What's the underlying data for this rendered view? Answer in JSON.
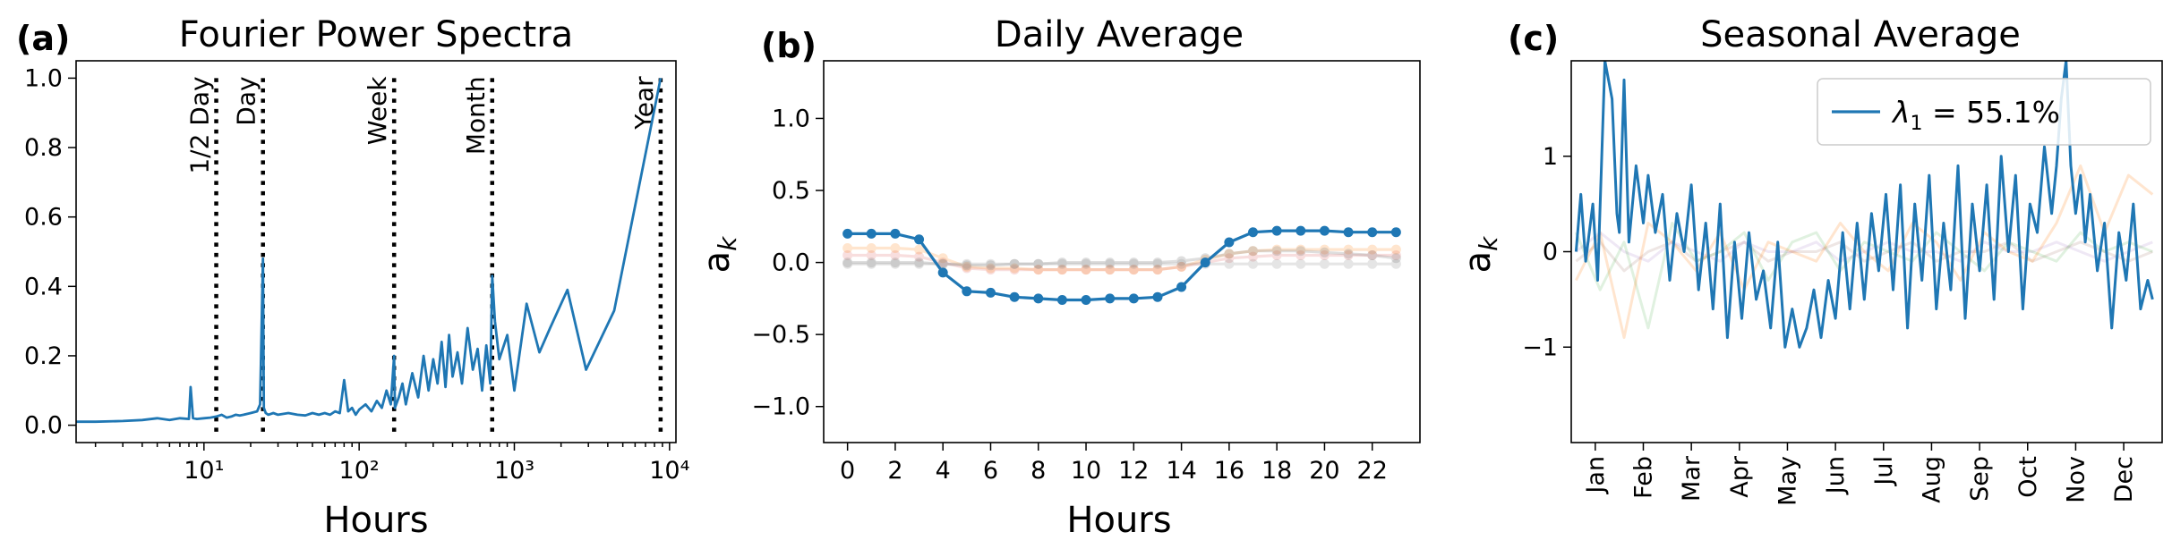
{
  "chart_data": [
    {
      "type": "line",
      "panel": "(a)",
      "title": "Fourier Power Spectra",
      "xlabel": "Hours",
      "ylabel": "",
      "xscale": "log",
      "xlim": [
        1.5,
        11000
      ],
      "ylim": [
        -0.05,
        1.05
      ],
      "yticks": [
        0.0,
        0.2,
        0.4,
        0.6,
        0.8,
        1.0
      ],
      "ytick_labels": [
        "0.0",
        "0.2",
        "0.4",
        "0.6",
        "0.8",
        "1.0"
      ],
      "xticks": [
        10,
        100,
        1000,
        10000
      ],
      "xtick_labels": [
        "10¹",
        "10²",
        "10³",
        "10⁴"
      ],
      "vertical_lines": [
        {
          "x": 12,
          "label": "1/2 Day"
        },
        {
          "x": 24,
          "label": "Day"
        },
        {
          "x": 168,
          "label": "Week"
        },
        {
          "x": 720,
          "label": "Month"
        },
        {
          "x": 8760,
          "label": "Year"
        }
      ],
      "series": [
        {
          "color": "#1f77b4",
          "x": [
            1.5,
            2,
            3,
            4,
            5,
            6,
            7,
            8,
            8.2,
            8.5,
            9,
            10,
            11,
            12,
            13,
            14,
            15,
            16,
            17,
            18,
            20,
            22,
            23,
            24,
            24.3,
            25,
            26,
            28,
            30,
            35,
            40,
            45,
            50,
            55,
            60,
            65,
            70,
            75,
            80,
            85,
            90,
            95,
            100,
            110,
            120,
            130,
            140,
            150,
            160,
            168,
            170,
            180,
            190,
            200,
            220,
            240,
            260,
            280,
            300,
            320,
            340,
            360,
            380,
            400,
            430,
            460,
            500,
            540,
            580,
            620,
            660,
            700,
            720,
            750,
            800,
            900,
            1000,
            1200,
            1450,
            1700,
            2200,
            2900,
            4400,
            8760
          ],
          "y": [
            0.01,
            0.01,
            0.012,
            0.015,
            0.02,
            0.015,
            0.02,
            0.018,
            0.11,
            0.02,
            0.018,
            0.02,
            0.022,
            0.025,
            0.03,
            0.022,
            0.025,
            0.03,
            0.028,
            0.03,
            0.035,
            0.04,
            0.06,
            0.48,
            0.05,
            0.035,
            0.03,
            0.035,
            0.03,
            0.035,
            0.03,
            0.028,
            0.035,
            0.03,
            0.035,
            0.03,
            0.04,
            0.035,
            0.13,
            0.04,
            0.05,
            0.03,
            0.045,
            0.06,
            0.04,
            0.07,
            0.05,
            0.1,
            0.06,
            0.2,
            0.05,
            0.08,
            0.12,
            0.06,
            0.15,
            0.08,
            0.2,
            0.1,
            0.19,
            0.12,
            0.24,
            0.11,
            0.26,
            0.14,
            0.21,
            0.12,
            0.28,
            0.16,
            0.22,
            0.1,
            0.23,
            0.12,
            0.43,
            0.3,
            0.19,
            0.26,
            0.1,
            0.35,
            0.21,
            0.28,
            0.39,
            0.16,
            0.33,
            1.0
          ]
        }
      ]
    },
    {
      "type": "line",
      "panel": "(b)",
      "title": "Daily Average",
      "xlabel": "Hours",
      "ylabel": "a_k",
      "xlim": [
        -1,
        24
      ],
      "ylim": [
        -1.25,
        1.4
      ],
      "yticks": [
        -1.0,
        -0.5,
        0.0,
        0.5,
        1.0
      ],
      "ytick_labels": [
        "−1.0",
        "−0.5",
        "0.0",
        "0.5",
        "1.0"
      ],
      "xticks": [
        0,
        2,
        4,
        6,
        8,
        10,
        12,
        14,
        16,
        18,
        20,
        22
      ],
      "xtick_labels": [
        "0",
        "2",
        "4",
        "6",
        "8",
        "10",
        "12",
        "14",
        "16",
        "18",
        "20",
        "22"
      ],
      "x": [
        0,
        1,
        2,
        3,
        4,
        5,
        6,
        7,
        8,
        9,
        10,
        11,
        12,
        13,
        14,
        15,
        16,
        17,
        18,
        19,
        20,
        21,
        22,
        23
      ],
      "series": [
        {
          "color": "#1f77b4",
          "alpha": 1.0,
          "values": [
            0.2,
            0.2,
            0.2,
            0.16,
            -0.07,
            -0.2,
            -0.21,
            -0.24,
            -0.25,
            -0.26,
            -0.26,
            -0.25,
            -0.25,
            -0.24,
            -0.17,
            0.0,
            0.14,
            0.21,
            0.22,
            0.22,
            0.22,
            0.21,
            0.21,
            0.21
          ]
        },
        {
          "color": "#ff7f0e",
          "alpha": 0.2,
          "values": [
            0.1,
            0.1,
            0.1,
            0.09,
            0.03,
            -0.03,
            -0.04,
            -0.04,
            -0.05,
            -0.05,
            -0.05,
            -0.05,
            -0.05,
            -0.05,
            -0.03,
            0.02,
            0.06,
            0.08,
            0.09,
            0.09,
            0.09,
            0.09,
            0.09,
            0.09
          ]
        },
        {
          "color": "#d62728",
          "alpha": 0.15,
          "values": [
            0.05,
            0.05,
            0.05,
            0.04,
            0.0,
            -0.04,
            -0.05,
            -0.05,
            -0.05,
            -0.05,
            -0.05,
            -0.05,
            -0.05,
            -0.05,
            -0.03,
            0.0,
            0.03,
            0.04,
            0.05,
            0.05,
            0.05,
            0.05,
            0.05,
            0.05
          ]
        },
        {
          "color": "#7f7f7f",
          "alpha": 0.25,
          "values": [
            0.0,
            0.0,
            0.0,
            0.0,
            -0.01,
            -0.02,
            -0.02,
            -0.01,
            -0.01,
            0.0,
            0.0,
            0.0,
            0.0,
            0.0,
            0.01,
            0.03,
            0.06,
            0.08,
            0.08,
            0.08,
            0.07,
            0.06,
            0.05,
            0.03
          ]
        },
        {
          "color": "#7f7f7f",
          "alpha": 0.2,
          "values": [
            -0.01,
            -0.01,
            -0.01,
            -0.01,
            -0.01,
            -0.01,
            -0.01,
            -0.01,
            -0.01,
            -0.01,
            -0.01,
            -0.01,
            -0.01,
            -0.01,
            -0.01,
            -0.01,
            -0.01,
            -0.01,
            -0.01,
            -0.01,
            -0.01,
            -0.01,
            -0.01,
            -0.01
          ]
        }
      ]
    },
    {
      "type": "line",
      "panel": "(c)",
      "title": "Seasonal Average",
      "xlabel": "",
      "ylabel": "a_k",
      "ylim": [
        -2.0,
        2.0
      ],
      "yticks": [
        -1,
        0,
        1
      ],
      "ytick_labels": [
        "−1",
        "0",
        "1"
      ],
      "xlim": [
        0,
        12.3
      ],
      "categories": [
        "Jan",
        "Feb",
        "Mar",
        "Apr",
        "May",
        "Jun",
        "Jul",
        "Aug",
        "Sep",
        "Oct",
        "Nov",
        "Dec"
      ],
      "category_positions": [
        0.5,
        1.5,
        2.5,
        3.5,
        4.5,
        5.5,
        6.5,
        7.5,
        8.5,
        9.5,
        10.5,
        11.5
      ],
      "legend": {
        "label_prefix": "λ",
        "label_sub": "1",
        "label_suffix": " = 55.1%",
        "loc": "upper right"
      },
      "series": [
        {
          "name": "λ1 = 55.1%",
          "color": "#1f77b4",
          "alpha": 1.0,
          "x": [
            0.1,
            0.2,
            0.3,
            0.45,
            0.55,
            0.7,
            0.85,
            0.95,
            1.0,
            1.1,
            1.2,
            1.35,
            1.5,
            1.6,
            1.75,
            1.9,
            2.05,
            2.2,
            2.35,
            2.5,
            2.65,
            2.8,
            2.95,
            3.1,
            3.25,
            3.4,
            3.55,
            3.7,
            3.85,
            4.0,
            4.15,
            4.3,
            4.45,
            4.6,
            4.75,
            4.9,
            5.05,
            5.2,
            5.35,
            5.5,
            5.65,
            5.8,
            5.95,
            6.1,
            6.25,
            6.4,
            6.55,
            6.7,
            6.85,
            7.0,
            7.15,
            7.3,
            7.45,
            7.6,
            7.75,
            7.9,
            8.05,
            8.2,
            8.35,
            8.5,
            8.65,
            8.8,
            8.95,
            9.1,
            9.25,
            9.4,
            9.55,
            9.7,
            9.85,
            10.0,
            10.1,
            10.2,
            10.3,
            10.4,
            10.5,
            10.6,
            10.7,
            10.8,
            10.95,
            11.1,
            11.25,
            11.4,
            11.55,
            11.7,
            11.85,
            12.0,
            12.1
          ],
          "values": [
            0.0,
            0.6,
            -0.1,
            0.5,
            -0.3,
            2.0,
            1.6,
            0.4,
            0.2,
            1.8,
            0.1,
            0.9,
            0.3,
            0.8,
            0.2,
            0.6,
            -0.3,
            0.4,
            0.0,
            0.7,
            -0.4,
            0.3,
            -0.6,
            0.5,
            -0.9,
            0.1,
            -0.7,
            0.2,
            -0.5,
            -0.2,
            -0.8,
            0.1,
            -1.0,
            -0.6,
            -1.0,
            -0.8,
            -0.4,
            -0.9,
            -0.3,
            -0.7,
            0.2,
            -0.6,
            0.3,
            -0.5,
            0.4,
            -0.2,
            0.6,
            -0.4,
            0.7,
            -0.8,
            0.5,
            -0.3,
            0.8,
            -0.6,
            0.3,
            -0.4,
            0.9,
            -0.7,
            0.5,
            -0.2,
            0.7,
            -0.5,
            1.0,
            0.0,
            0.8,
            -0.6,
            0.5,
            0.2,
            1.1,
            0.4,
            0.9,
            1.6,
            2.0,
            0.9,
            0.4,
            0.8,
            0.1,
            0.6,
            -0.2,
            0.3,
            -0.8,
            0.2,
            -0.3,
            0.5,
            -0.6,
            -0.3,
            -0.5
          ]
        },
        {
          "color": "#ff7f0e",
          "alpha": 0.2,
          "x": [
            0.1,
            0.6,
            1.1,
            1.6,
            2.1,
            2.6,
            3.1,
            3.6,
            4.1,
            4.6,
            5.1,
            5.6,
            6.1,
            6.6,
            7.1,
            7.6,
            8.1,
            8.6,
            9.1,
            9.6,
            10.1,
            10.6,
            11.1,
            11.6,
            12.1
          ],
          "values": [
            -0.3,
            0.2,
            -0.9,
            0.3,
            0.1,
            -0.2,
            0.2,
            -0.4,
            0.1,
            0.0,
            -0.1,
            0.3,
            0.0,
            -0.2,
            0.3,
            0.1,
            -0.3,
            0.2,
            0.0,
            -0.1,
            0.3,
            0.9,
            0.2,
            0.8,
            0.6
          ]
        },
        {
          "color": "#2ca02c",
          "alpha": 0.15,
          "x": [
            0.1,
            0.6,
            1.1,
            1.6,
            2.1,
            2.6,
            3.1,
            3.6,
            4.1,
            4.6,
            5.1,
            5.6,
            6.1,
            6.6,
            7.1,
            7.6,
            8.1,
            8.6,
            9.1,
            9.6,
            10.1,
            10.6,
            11.1,
            11.6,
            12.1
          ],
          "values": [
            0.2,
            -0.4,
            0.1,
            -0.8,
            0.3,
            -0.1,
            0.0,
            0.2,
            -0.3,
            0.1,
            0.2,
            -0.2,
            0.1,
            0.0,
            -0.1,
            0.2,
            0.0,
            -0.2,
            0.1,
            0.0,
            -0.1,
            0.2,
            0.0,
            0.1,
            0.0
          ]
        },
        {
          "color": "#9467bd",
          "alpha": 0.15,
          "x": [
            0.1,
            0.6,
            1.1,
            1.6,
            2.1,
            2.6,
            3.1,
            3.6,
            4.1,
            4.6,
            5.1,
            5.6,
            6.1,
            6.6,
            7.1,
            7.6,
            8.1,
            8.6,
            9.1,
            9.6,
            10.1,
            10.6,
            11.1,
            11.6,
            12.1
          ],
          "values": [
            0.0,
            0.2,
            0.0,
            -0.1,
            0.1,
            0.0,
            -0.1,
            0.1,
            0.0,
            0.0,
            0.1,
            -0.1,
            0.0,
            0.1,
            0.0,
            0.0,
            -0.1,
            0.1,
            0.0,
            0.0,
            0.1,
            0.0,
            -0.1,
            0.0,
            0.1
          ]
        },
        {
          "color": "#8c564b",
          "alpha": 0.15,
          "x": [
            0.1,
            0.6,
            1.1,
            1.6,
            2.1,
            2.6,
            3.1,
            3.6,
            4.1,
            4.6,
            5.1,
            5.6,
            6.1,
            6.6,
            7.1,
            7.6,
            8.1,
            8.6,
            9.1,
            9.6,
            10.1,
            10.6,
            11.1,
            11.6,
            12.1
          ],
          "values": [
            -0.1,
            0.1,
            -0.2,
            0.0,
            0.1,
            -0.1,
            0.0,
            0.1,
            -0.1,
            0.0,
            0.0,
            0.1,
            -0.1,
            0.0,
            0.1,
            -0.1,
            0.0,
            0.0,
            0.1,
            -0.1,
            0.0,
            0.1,
            0.0,
            -0.1,
            0.0
          ]
        }
      ]
    }
  ]
}
